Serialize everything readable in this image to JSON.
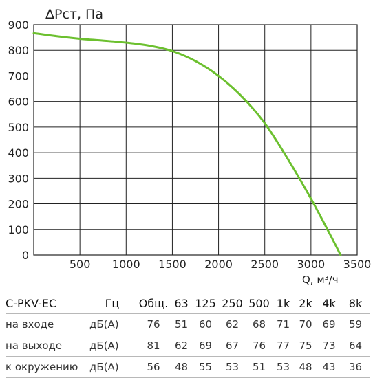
{
  "chart_data": {
    "type": "line",
    "ylabel": "ΔPст, Па",
    "xlabel": "Q, м³/ч",
    "xlim": [
      0,
      3500
    ],
    "ylim": [
      0,
      900
    ],
    "x_ticks": [
      "500",
      "1000",
      "1500",
      "2000",
      "2500",
      "3000",
      "3500"
    ],
    "y_ticks": [
      "0",
      "100",
      "200",
      "300",
      "400",
      "500",
      "600",
      "700",
      "800",
      "900"
    ],
    "grid": true,
    "series": [
      {
        "color": "#6cc02f",
        "x": [
          0,
          250,
          500,
          750,
          1000,
          1250,
          1500,
          1750,
          2000,
          2250,
          2500,
          2750,
          3000,
          3250,
          3320
        ],
        "y": [
          867,
          855,
          845,
          838,
          830,
          818,
          797,
          758,
          700,
          620,
          515,
          375,
          220,
          50,
          0
        ]
      }
    ]
  },
  "noise_table": {
    "title": "C-PKV-EC",
    "headers": [
      "Гц",
      "Общ.",
      "63",
      "125",
      "250",
      "500",
      "1k",
      "2k",
      "4k",
      "8k"
    ],
    "rows": [
      {
        "label": "на входе",
        "unit": "дБ(A)",
        "values": [
          "76",
          "51",
          "60",
          "62",
          "68",
          "71",
          "70",
          "69",
          "59"
        ]
      },
      {
        "label": "на выходе",
        "unit": "дБ(A)",
        "values": [
          "81",
          "62",
          "69",
          "67",
          "76",
          "77",
          "75",
          "73",
          "64"
        ]
      },
      {
        "label": "к окружению",
        "unit": "дБ(A)",
        "values": [
          "56",
          "48",
          "55",
          "53",
          "51",
          "53",
          "48",
          "43",
          "36"
        ]
      }
    ]
  }
}
